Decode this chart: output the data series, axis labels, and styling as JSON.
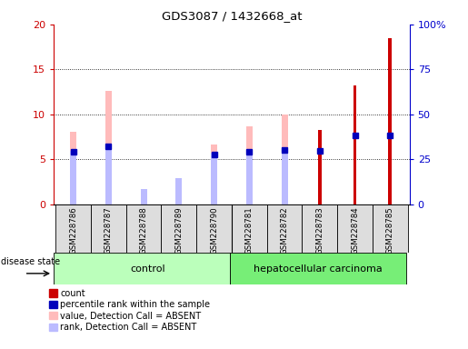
{
  "title": "GDS3087 / 1432668_at",
  "samples": [
    "GSM228786",
    "GSM228787",
    "GSM228788",
    "GSM228789",
    "GSM228790",
    "GSM228781",
    "GSM228782",
    "GSM228783",
    "GSM228784",
    "GSM228785"
  ],
  "count_values": [
    0,
    0,
    0,
    0,
    0,
    0,
    0,
    8.3,
    13.2,
    18.5
  ],
  "percentile_rank_values": [
    5.8,
    6.4,
    0,
    0,
    5.5,
    5.8,
    6.0,
    5.9,
    7.6,
    7.6
  ],
  "absent_value_values": [
    8.1,
    12.6,
    1.3,
    2.4,
    6.6,
    8.7,
    10.0,
    0,
    0,
    0
  ],
  "absent_rank_values": [
    5.9,
    6.5,
    1.7,
    2.9,
    5.7,
    5.9,
    6.1,
    0,
    0,
    0
  ],
  "ylim_left": [
    0,
    20
  ],
  "ylim_right": [
    0,
    100
  ],
  "yticks_left": [
    0,
    5,
    10,
    15,
    20
  ],
  "yticks_right": [
    0,
    25,
    50,
    75,
    100
  ],
  "yticklabels_left": [
    "0",
    "5",
    "10",
    "15",
    "20"
  ],
  "yticklabels_right": [
    "0",
    "25",
    "50",
    "75",
    "100%"
  ],
  "left_axis_color": "#cc0000",
  "right_axis_color": "#0000cc",
  "count_color": "#cc0000",
  "percentile_color": "#0000bb",
  "absent_value_color": "#ffbbbb",
  "absent_rank_color": "#bbbbff",
  "control_color": "#bbffbb",
  "cancer_color": "#77ee77",
  "control_label": "control",
  "cancer_label": "hepatocellular carcinoma",
  "disease_state_label": "disease state",
  "n_control": 5,
  "legend_items": [
    {
      "label": "count",
      "color": "#cc0000",
      "type": "rect"
    },
    {
      "label": "percentile rank within the sample",
      "color": "#0000bb",
      "type": "rect"
    },
    {
      "label": "value, Detection Call = ABSENT",
      "color": "#ffbbbb",
      "type": "rect"
    },
    {
      "label": "rank, Detection Call = ABSENT",
      "color": "#bbbbff",
      "type": "rect"
    }
  ]
}
